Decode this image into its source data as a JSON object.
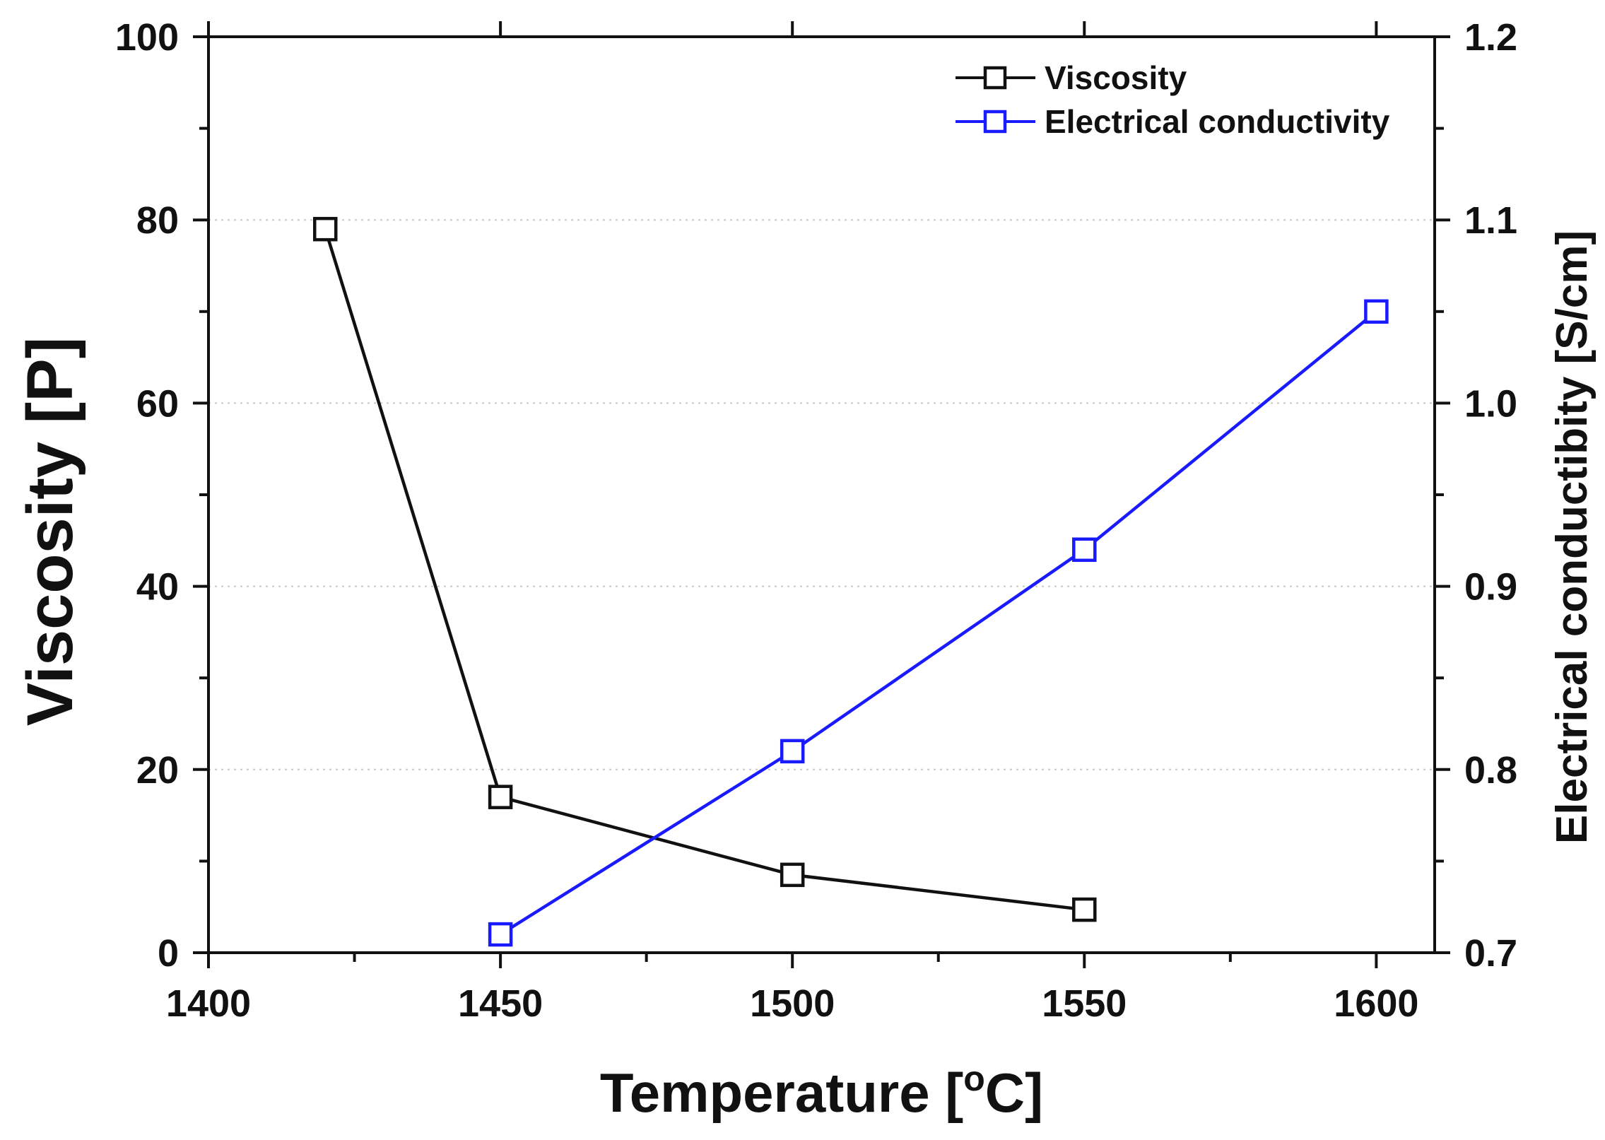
{
  "chart_data": {
    "type": "line",
    "x_axis": {
      "label": "Temperature [",
      "label_sup": "o",
      "label_end": "C]",
      "range": [
        1400,
        1610
      ],
      "ticks": [
        "1400",
        "1450",
        "1500",
        "1550",
        "1600"
      ]
    },
    "y_axis_left": {
      "label": "Viscosity [P]",
      "range": [
        0,
        100
      ],
      "ticks": [
        "0",
        "20",
        "40",
        "60",
        "80",
        "100"
      ]
    },
    "y_axis_right": {
      "label": "Electrical conductibity [S/cm]",
      "range": [
        0.7,
        1.2
      ],
      "ticks": [
        "0.7",
        "0.8",
        "0.9",
        "1.0",
        "1.1",
        "1.2"
      ]
    },
    "grid": "dotted horizontal at major ticks",
    "legend_position": "top-right",
    "series": [
      {
        "name": "Viscosity",
        "axis": "left",
        "color": "#111111",
        "marker": "open-square",
        "x": [
          1420,
          1450,
          1500,
          1550
        ],
        "y": [
          79,
          17,
          8.5,
          4.7
        ]
      },
      {
        "name": "Electrical conductivity",
        "axis": "right",
        "color": "#1a1aff",
        "marker": "open-square",
        "x": [
          1450,
          1500,
          1550,
          1600
        ],
        "y": [
          0.71,
          0.81,
          0.92,
          1.05
        ]
      }
    ]
  }
}
